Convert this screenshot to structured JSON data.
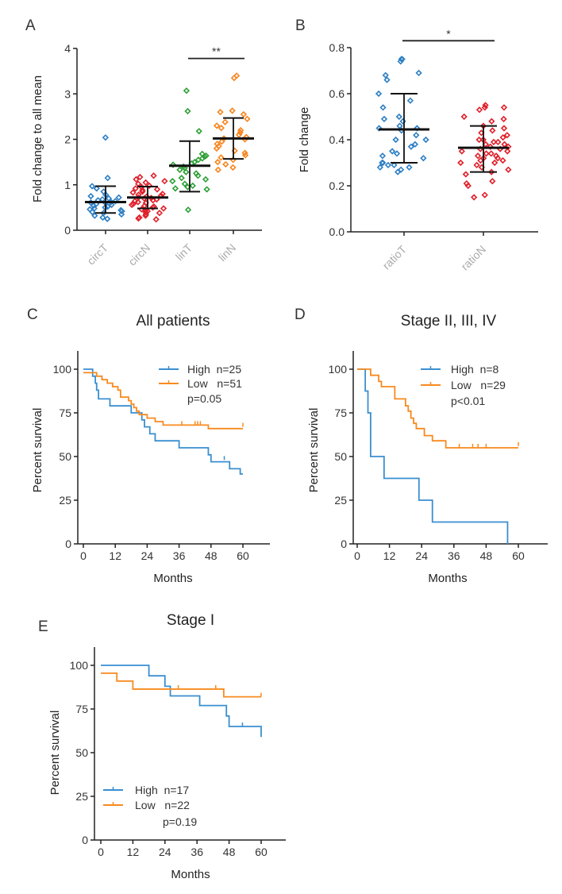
{
  "colors": {
    "blue": "#2e7fc4",
    "red": "#e0202a",
    "green": "#2ea035",
    "orange": "#f7851e",
    "high": "#3a8fd0",
    "low": "#f88a1f",
    "axis": "#222222"
  },
  "chart_data": [
    {
      "panel": "A",
      "type": "scatter",
      "title": "",
      "xlabel": "",
      "ylabel": "Fold change to all mean",
      "ylim": [
        0,
        4
      ],
      "yticks": [
        "0",
        "1",
        "2",
        "3",
        "4"
      ],
      "categories": [
        "circT",
        "circN",
        "linT",
        "linN"
      ],
      "series": [
        {
          "name": "circT",
          "color": "blue",
          "mean": 0.62,
          "sd_low": 0.38,
          "sd_high": 0.97,
          "values": [
            2.04,
            1.15,
            0.97,
            0.92,
            0.85,
            0.78,
            0.75,
            0.72,
            0.7,
            0.68,
            0.66,
            0.64,
            0.62,
            0.61,
            0.6,
            0.58,
            0.56,
            0.54,
            0.52,
            0.5,
            0.48,
            0.46,
            0.44,
            0.42,
            0.4,
            0.38,
            0.35,
            0.32,
            0.28,
            0.25
          ]
        },
        {
          "name": "circN",
          "color": "red",
          "mean": 0.72,
          "sd_low": 0.48,
          "sd_high": 0.96,
          "values": [
            1.2,
            1.17,
            1.12,
            1.08,
            1.05,
            1.02,
            0.98,
            0.95,
            0.92,
            0.9,
            0.88,
            0.85,
            0.83,
            0.8,
            0.78,
            0.76,
            0.74,
            0.72,
            0.71,
            0.7,
            0.68,
            0.66,
            0.64,
            0.62,
            0.6,
            0.58,
            0.56,
            0.54,
            0.52,
            0.5,
            0.48,
            0.46,
            0.44,
            0.42,
            0.4,
            0.38,
            0.35,
            0.32,
            0.28,
            0.26,
            0.24
          ]
        },
        {
          "name": "linT",
          "color": "green",
          "mean": 1.42,
          "sd_low": 0.85,
          "sd_high": 1.96,
          "values": [
            3.07,
            2.62,
            2.18,
            1.68,
            1.64,
            1.62,
            1.58,
            1.55,
            1.5,
            1.47,
            1.44,
            1.4,
            1.37,
            1.33,
            1.28,
            1.25,
            1.2,
            1.15,
            1.12,
            1.08,
            1.02,
            0.98,
            0.95,
            0.92,
            0.9,
            0.45
          ]
        },
        {
          "name": "linN",
          "color": "orange",
          "mean": 2.02,
          "sd_low": 1.57,
          "sd_high": 2.47,
          "values": [
            3.4,
            3.35,
            2.63,
            2.6,
            2.55,
            2.45,
            2.38,
            2.3,
            2.25,
            2.2,
            2.15,
            2.1,
            2.05,
            2.02,
            2.0,
            1.95,
            1.9,
            1.85,
            1.8,
            1.75,
            1.7,
            1.65,
            1.6,
            1.55,
            1.5,
            1.45,
            1.38,
            1.33
          ]
        }
      ],
      "annotations": [
        {
          "text": "**",
          "between": [
            "linT",
            "linN"
          ],
          "y": 3.78
        }
      ]
    },
    {
      "panel": "B",
      "type": "scatter",
      "title": "",
      "xlabel": "",
      "ylabel": "Fold change",
      "ylim": [
        0,
        0.8
      ],
      "yticks": [
        "0.0",
        "0.2",
        "0.4",
        "0.6",
        "0.8"
      ],
      "categories": [
        "ratioT",
        "ratioN"
      ],
      "series": [
        {
          "name": "ratioT",
          "color": "blue",
          "mean": 0.445,
          "sd_low": 0.3,
          "sd_high": 0.6,
          "values": [
            0.75,
            0.74,
            0.75,
            0.69,
            0.68,
            0.66,
            0.6,
            0.57,
            0.54,
            0.5,
            0.49,
            0.48,
            0.46,
            0.45,
            0.45,
            0.44,
            0.42,
            0.4,
            0.4,
            0.38,
            0.37,
            0.35,
            0.34,
            0.33,
            0.32,
            0.3,
            0.3,
            0.29,
            0.29,
            0.28,
            0.28,
            0.27,
            0.26
          ]
        },
        {
          "name": "ratioN",
          "color": "red",
          "mean": 0.365,
          "sd_low": 0.26,
          "sd_high": 0.46,
          "values": [
            0.55,
            0.54,
            0.54,
            0.53,
            0.5,
            0.49,
            0.48,
            0.46,
            0.45,
            0.44,
            0.43,
            0.42,
            0.41,
            0.4,
            0.4,
            0.39,
            0.39,
            0.38,
            0.38,
            0.37,
            0.37,
            0.36,
            0.36,
            0.35,
            0.35,
            0.34,
            0.34,
            0.33,
            0.33,
            0.32,
            0.32,
            0.31,
            0.31,
            0.3,
            0.3,
            0.29,
            0.28,
            0.27,
            0.26,
            0.25,
            0.22,
            0.21,
            0.2,
            0.16,
            0.15
          ]
        }
      ],
      "annotations": [
        {
          "text": "*",
          "between": [
            "ratioT",
            "ratioN"
          ],
          "y": 0.83
        }
      ]
    },
    {
      "panel": "C",
      "type": "line",
      "title": "All patients",
      "xlabel": "Months",
      "ylabel": "Percent survival",
      "xlim": [
        0,
        68
      ],
      "ylim": [
        0,
        110
      ],
      "xticks": [
        "0",
        "12",
        "24",
        "36",
        "48",
        "60"
      ],
      "yticks": [
        "0",
        "25",
        "50",
        "75",
        "100"
      ],
      "legend": {
        "position": "top-right",
        "entries": [
          "High  n=25",
          "Low   n=51"
        ],
        "pvalue": "p=0.05"
      },
      "series": [
        {
          "name": "High",
          "color": "high",
          "steps": [
            [
              0,
              100
            ],
            [
              3.5,
              96
            ],
            [
              4.5,
              92
            ],
            [
              5,
              88
            ],
            [
              5.7,
              83
            ],
            [
              10,
              79
            ],
            [
              18,
              75
            ],
            [
              22,
              71
            ],
            [
              23,
              67
            ],
            [
              25,
              63
            ],
            [
              27,
              59
            ],
            [
              36,
              55
            ],
            [
              47,
              51
            ],
            [
              48,
              47
            ],
            [
              55,
              43
            ],
            [
              59,
              40
            ],
            [
              60,
              40
            ]
          ],
          "censors": [
            [
              53,
              48
            ]
          ]
        },
        {
          "name": "Low",
          "color": "low",
          "steps": [
            [
              0,
              98
            ],
            [
              5,
              96
            ],
            [
              7,
              94
            ],
            [
              9,
              92
            ],
            [
              11,
              90
            ],
            [
              13,
              88
            ],
            [
              14,
              84
            ],
            [
              17,
              82
            ],
            [
              18,
              80
            ],
            [
              19,
              78
            ],
            [
              20,
              76
            ],
            [
              21,
              74
            ],
            [
              24,
              72
            ],
            [
              27,
              70
            ],
            [
              30,
              68
            ],
            [
              47,
              66
            ],
            [
              60,
              66
            ]
          ],
          "censors": [
            [
              37,
              68
            ],
            [
              42,
              68
            ],
            [
              43,
              68
            ],
            [
              44,
              68
            ],
            [
              60,
              67
            ]
          ]
        }
      ]
    },
    {
      "panel": "D",
      "type": "line",
      "title": "Stage II, III, IV",
      "xlabel": "Months",
      "ylabel": "Percent survival",
      "xlim": [
        0,
        68
      ],
      "ylim": [
        0,
        110
      ],
      "xticks": [
        "0",
        "12",
        "24",
        "36",
        "48",
        "60"
      ],
      "yticks": [
        "0",
        "25",
        "50",
        "75",
        "100"
      ],
      "legend": {
        "position": "top-right",
        "entries": [
          "High  n=8",
          "Low   n=29"
        ],
        "pvalue": "p<0.01"
      },
      "series": [
        {
          "name": "High",
          "color": "high",
          "steps": [
            [
              0,
              100
            ],
            [
              3,
              87.5
            ],
            [
              4,
              75
            ],
            [
              5,
              50
            ],
            [
              10,
              37.5
            ],
            [
              23,
              25
            ],
            [
              28,
              12.5
            ],
            [
              56,
              0
            ]
          ],
          "censors": []
        },
        {
          "name": "Low",
          "color": "low",
          "steps": [
            [
              0,
              100
            ],
            [
              5,
              96.5
            ],
            [
              8,
              93
            ],
            [
              9,
              90
            ],
            [
              14,
              83
            ],
            [
              18,
              79
            ],
            [
              19,
              76
            ],
            [
              20,
              72
            ],
            [
              21,
              69
            ],
            [
              22,
              66
            ],
            [
              25,
              62
            ],
            [
              28,
              59
            ],
            [
              33,
              55
            ],
            [
              60,
              55
            ]
          ],
          "censors": [
            [
              38,
              55
            ],
            [
              43,
              55
            ],
            [
              45,
              55
            ],
            [
              48,
              55
            ],
            [
              60,
              56
            ]
          ]
        }
      ]
    },
    {
      "panel": "E",
      "type": "line",
      "title": "Stage I",
      "xlabel": "Months",
      "ylabel": "Percent survival",
      "xlim": [
        0,
        68
      ],
      "ylim": [
        0,
        110
      ],
      "xticks": [
        "0",
        "12",
        "24",
        "36",
        "48",
        "60"
      ],
      "yticks": [
        "0",
        "25",
        "50",
        "75",
        "100"
      ],
      "legend": {
        "position": "bottom-left",
        "entries": [
          "High  n=17",
          "Low   n=22"
        ],
        "pvalue": "p=0.19"
      },
      "series": [
        {
          "name": "High",
          "color": "high",
          "steps": [
            [
              0,
              100
            ],
            [
              18,
              94
            ],
            [
              24,
              88
            ],
            [
              26,
              82.5
            ],
            [
              37,
              77
            ],
            [
              47,
              71
            ],
            [
              48,
              65
            ],
            [
              60,
              59
            ]
          ],
          "censors": [
            [
              53,
              65
            ]
          ]
        },
        {
          "name": "Low",
          "color": "low",
          "steps": [
            [
              0,
              95.5
            ],
            [
              6,
              91
            ],
            [
              12,
              86.4
            ],
            [
              46,
              82
            ],
            [
              60,
              82
            ]
          ],
          "censors": [
            [
              29,
              86.4
            ],
            [
              43,
              86.4
            ],
            [
              60,
              82
            ]
          ]
        }
      ]
    }
  ],
  "panels": {
    "A": {
      "label": "A"
    },
    "B": {
      "label": "B"
    },
    "C": {
      "label": "C"
    },
    "D": {
      "label": "D"
    },
    "E": {
      "label": "E"
    }
  }
}
